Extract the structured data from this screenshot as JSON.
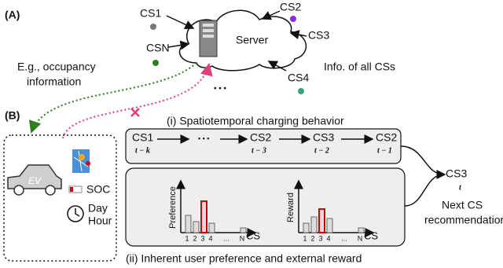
{
  "labels": {
    "part_a": "(A)",
    "part_b": "(B)"
  },
  "server": "Server",
  "stations": [
    {
      "label": "CS1"
    },
    {
      "label": "CS2"
    },
    {
      "label": "CS3"
    },
    {
      "label": "CS4"
    },
    {
      "label": "CSN"
    }
  ],
  "server_note": "Info. of all CSs",
  "ellipsis": "• • •",
  "feedback_note": [
    "E.g., occupancy",
    "information"
  ],
  "user": {
    "vehicle": "EV",
    "soc": "SOC",
    "time": [
      "Day",
      "Hour"
    ]
  },
  "sequence": {
    "title": "(i) Spatiotemporal charging behavior",
    "steps": [
      {
        "station": "CS1",
        "time": "t − k"
      },
      {
        "station": "• • •"
      },
      {
        "station": "CS2",
        "time": "t − 3"
      },
      {
        "station": "CS3",
        "time": "t − 2"
      },
      {
        "station": "CS2",
        "time": "t − 1"
      }
    ]
  },
  "output": {
    "station": "CS3",
    "time": "t",
    "caption": [
      "Next CS",
      "recommendation"
    ]
  },
  "panels": {
    "title": "(ii) Inherent user preference and external reward",
    "charts": [
      {
        "ylabel": "Preference",
        "xlabel": "CS",
        "xticks": [
          "1",
          "2",
          "3",
          "4",
          "...",
          "N"
        ]
      },
      {
        "ylabel": "Reward",
        "xlabel": "CS",
        "xticks": [
          "1",
          "2",
          "3",
          "4",
          "...",
          "N"
        ]
      }
    ]
  }
}
